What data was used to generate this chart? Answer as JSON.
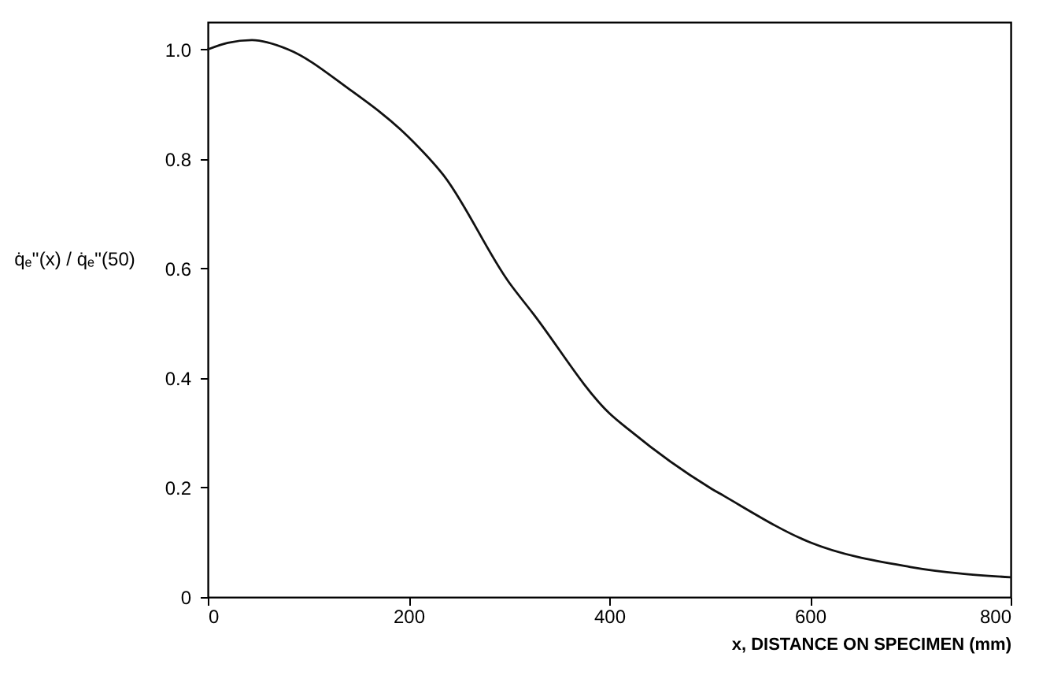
{
  "chart_data": {
    "type": "line",
    "xlabel": "x, DISTANCE ON SPECIMEN (mm)",
    "ylabel": "q̇ₑ''(x) / q̇ₑ''(50)",
    "x": [
      0,
      20,
      44,
      80,
      139,
      200,
      235,
      300,
      324,
      400,
      420,
      500,
      514,
      600,
      700,
      800
    ],
    "series": [
      {
        "color": "#111111",
        "values": [
          1.0,
          1.012,
          1.017,
          1.0,
          0.93,
          0.84,
          0.77,
          0.575,
          0.518,
          0.336,
          0.305,
          0.2,
          0.185,
          0.1,
          0.055,
          0.036
        ]
      }
    ],
    "xlim": [
      0,
      800
    ],
    "xticks": [
      0,
      200,
      400,
      600,
      800
    ],
    "ylim": [
      0,
      1.05
    ],
    "yticks": [
      0,
      0.2,
      0.4,
      0.6,
      0.8,
      {
        "value": 1,
        "label": "1.0"
      }
    ],
    "grid": false,
    "legend": false,
    "marker": "none",
    "line_style": "solid"
  }
}
